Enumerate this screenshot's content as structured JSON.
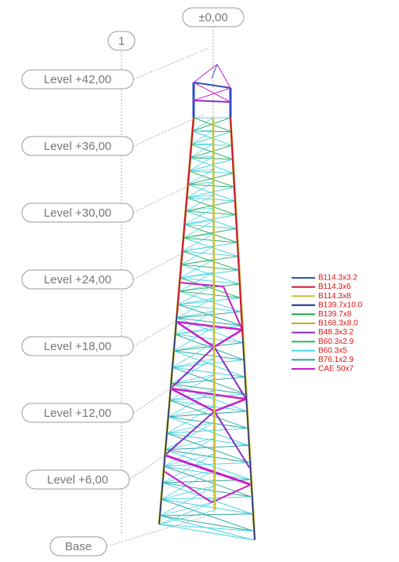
{
  "axis_labels": {
    "top": "±0,00",
    "grid": "1"
  },
  "levels": [
    "Level +42,00",
    "Level +36,00",
    "Level +30,00",
    "Level +24,00",
    "Level +18,00",
    "Level +12,00",
    "Level +6,00",
    "Base"
  ],
  "legend": [
    {
      "label": "B114.3x3.2",
      "color": "#2f4fc4"
    },
    {
      "label": "B114.3x6",
      "color": "#c8143c"
    },
    {
      "label": "B114.3x8",
      "color": "#c8c030"
    },
    {
      "label": "B139.7x10.0",
      "color": "#1e2a8c"
    },
    {
      "label": "B139.7x8",
      "color": "#1fa050"
    },
    {
      "label": "B168.3x8.0",
      "color": "#b8b020"
    },
    {
      "label": "B48.3x3.2",
      "color": "#8a2cc8"
    },
    {
      "label": "B60.3x2.9",
      "color": "#34b464"
    },
    {
      "label": "B60.3x5",
      "color": "#48d4e4"
    },
    {
      "label": "B76.1x2.9",
      "color": "#2ea4a4"
    },
    {
      "label": "CAE 50x7",
      "color": "#c81ec8"
    }
  ]
}
